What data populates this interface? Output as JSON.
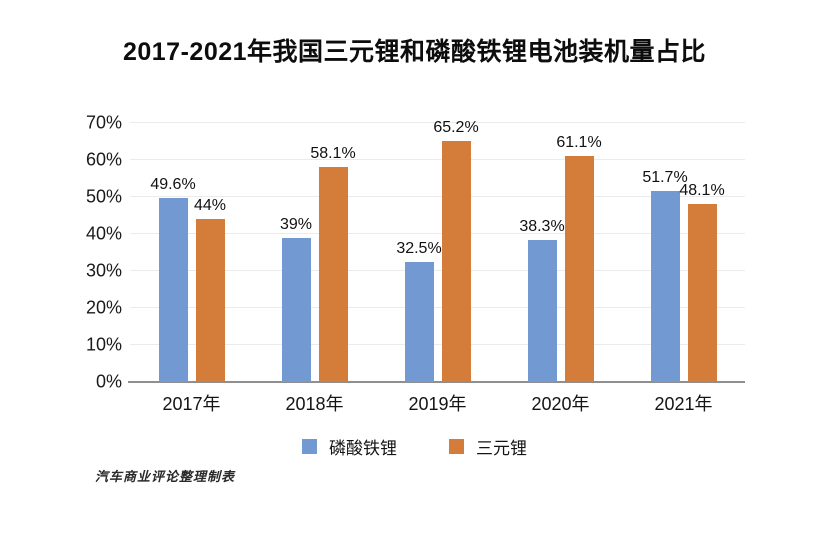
{
  "title": "2017-2021年我国三元锂和磷酸铁锂电池装机量占比",
  "footer_note": "汽车商业评论整理制表",
  "colors": {
    "lfp_blue": "#7399d3",
    "ncm_orange": "#d47d3a",
    "gridline": "#ebebeb",
    "axis": "#8f8f8f"
  },
  "chart_data": {
    "type": "bar",
    "title": "2017-2021年我国三元锂和磷酸铁锂电池装机量占比",
    "categories": [
      "2017年",
      "2018年",
      "2019年",
      "2020年",
      "2021年"
    ],
    "series": [
      {
        "name": "磷酸铁锂",
        "color": "#7399d3",
        "values": [
          49.6,
          39,
          32.5,
          38.3,
          51.7
        ],
        "labels": [
          "49.6%",
          "39%",
          "32.5%",
          "38.3%",
          "51.7%"
        ]
      },
      {
        "name": "三元锂",
        "color": "#d47d3a",
        "values": [
          44,
          58.1,
          65.2,
          61.1,
          48.1
        ],
        "labels": [
          "44%",
          "58.1%",
          "65.2%",
          "61.1%",
          "48.1%"
        ]
      }
    ],
    "xlabel": "",
    "ylabel": "",
    "ylim": [
      0,
      70
    ],
    "y_tick_labels": [
      "0%",
      "10%",
      "20%",
      "30%",
      "40%",
      "50%",
      "60%",
      "70%"
    ],
    "y_tick_step": 10,
    "grid": true,
    "legend_position": "bottom"
  }
}
